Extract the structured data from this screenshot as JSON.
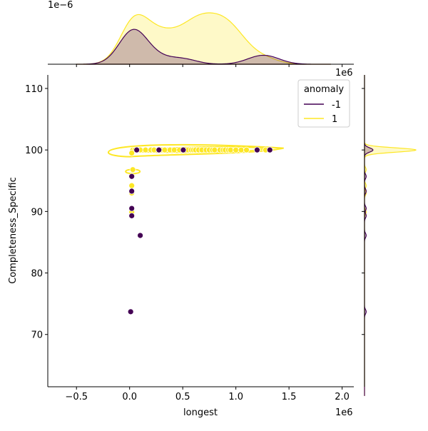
{
  "chart_data": {
    "type": "scatter",
    "subtype": "jointplot with KDE contours and marginal KDEs",
    "xlabel": "longest",
    "ylabel": "Completeness_Specific",
    "x_offset_label": "1e6",
    "marginal_x_offset_label": "1e6",
    "marginal_density_offset_label": "1e−6",
    "xlim": [
      -0.77,
      2.11
    ],
    "ylim": [
      61.5,
      112.2
    ],
    "x_ticks": [
      -0.5,
      0.0,
      0.5,
      1.0,
      1.5,
      2.0
    ],
    "x_tick_labels": [
      "−0.5",
      "0.0",
      "0.5",
      "1.0",
      "1.5",
      "2.0"
    ],
    "y_ticks": [
      70,
      80,
      90,
      100,
      110
    ],
    "y_tick_labels": [
      "70",
      "80",
      "90",
      "100",
      "110"
    ],
    "grid": false,
    "legend": {
      "title": "anomaly",
      "placement": "top-right",
      "entries": [
        "-1",
        "1"
      ]
    },
    "colors": {
      "-1": "#440154",
      "1": "#fde725"
    },
    "series": [
      {
        "name": "1",
        "color": "#fde725",
        "points": [
          [
            0.03,
            100
          ],
          [
            0.05,
            100
          ],
          [
            0.1,
            100
          ],
          [
            0.15,
            100
          ],
          [
            0.2,
            100
          ],
          [
            0.23,
            100
          ],
          [
            0.3,
            100
          ],
          [
            0.33,
            100
          ],
          [
            0.38,
            100
          ],
          [
            0.42,
            100
          ],
          [
            0.47,
            100
          ],
          [
            0.55,
            100
          ],
          [
            0.58,
            100
          ],
          [
            0.6,
            100
          ],
          [
            0.62,
            100
          ],
          [
            0.65,
            100
          ],
          [
            0.68,
            100
          ],
          [
            0.72,
            100
          ],
          [
            0.75,
            100
          ],
          [
            0.78,
            100
          ],
          [
            0.8,
            100
          ],
          [
            0.85,
            100
          ],
          [
            0.88,
            100
          ],
          [
            0.9,
            100
          ],
          [
            0.93,
            100
          ],
          [
            0.95,
            100
          ],
          [
            1.0,
            100
          ],
          [
            1.05,
            100
          ],
          [
            1.1,
            100
          ],
          [
            1.28,
            100
          ],
          [
            0.02,
            99.5
          ],
          [
            0.03,
            96.8
          ],
          [
            0.02,
            94.2
          ],
          [
            0.02,
            93.0
          ],
          [
            0.02,
            89.9
          ]
        ]
      },
      {
        "name": "-1",
        "color": "#440154",
        "points": [
          [
            0.067,
            100
          ],
          [
            0.276,
            100
          ],
          [
            0.505,
            100
          ],
          [
            1.2,
            100
          ],
          [
            1.32,
            100
          ],
          [
            0.02,
            95.7
          ],
          [
            0.02,
            93.3
          ],
          [
            0.02,
            90.5
          ],
          [
            0.02,
            89.3
          ],
          [
            0.1,
            86.1
          ],
          [
            0.01,
            73.7
          ]
        ]
      }
    ]
  }
}
